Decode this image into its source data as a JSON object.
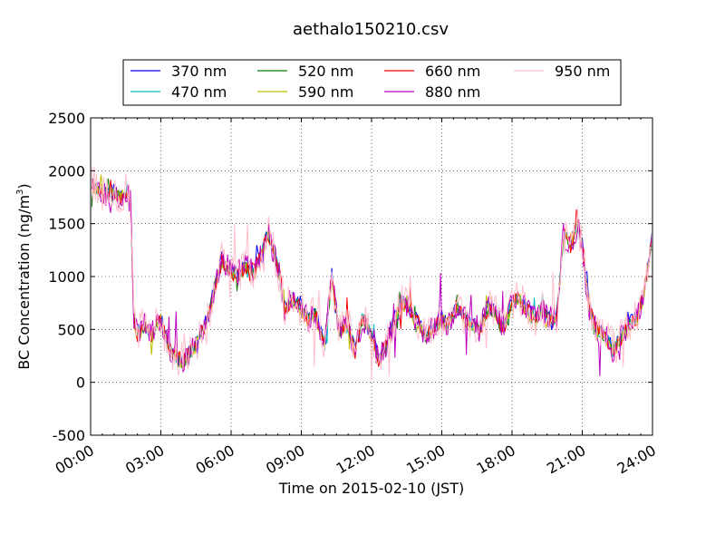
{
  "chart_data": {
    "type": "line",
    "title": "aethalo150210.csv",
    "xlabel": "Time on 2015-02-10 (JST)",
    "ylabel_main": "BC Concentration (ng/m",
    "ylabel_sup": "3",
    "ylabel_close": ")",
    "x_unit": "hours since 00:00",
    "xlim": [
      0,
      24
    ],
    "ylim": [
      -500,
      2500
    ],
    "xticks": [
      0,
      3,
      6,
      9,
      12,
      15,
      18,
      21,
      24
    ],
    "xtick_labels": [
      "00:00",
      "03:00",
      "06:00",
      "09:00",
      "12:00",
      "15:00",
      "18:00",
      "21:00",
      "24:00"
    ],
    "yticks": [
      -500,
      0,
      500,
      1000,
      1500,
      2000,
      2500
    ],
    "ytick_labels": [
      "-500",
      "0",
      "500",
      "1000",
      "1500",
      "2000",
      "2500"
    ],
    "grid": true,
    "legend_position": "top-center",
    "colors": {
      "370 nm": "#0000ff",
      "470 nm": "#00bfbf",
      "520 nm": "#008000",
      "590 nm": "#bfbf00",
      "660 nm": "#ff0000",
      "880 nm": "#bf00bf",
      "950 nm": "#ffc0cb"
    },
    "base_profile": {
      "x": [
        0,
        0.25,
        0.5,
        0.75,
        1.0,
        1.25,
        1.5,
        1.7,
        1.85,
        2.0,
        2.3,
        2.6,
        3.0,
        3.3,
        3.6,
        4.0,
        4.3,
        4.6,
        5.0,
        5.3,
        5.6,
        6.0,
        6.3,
        6.6,
        7.0,
        7.3,
        7.6,
        8.0,
        8.3,
        8.6,
        9.0,
        9.3,
        9.6,
        10.0,
        10.3,
        10.6,
        11.0,
        11.3,
        11.6,
        12.0,
        12.3,
        12.6,
        13.0,
        13.3,
        13.6,
        14.0,
        14.3,
        14.6,
        15.0,
        15.3,
        15.6,
        16.0,
        16.3,
        16.6,
        17.0,
        17.3,
        17.6,
        18.0,
        18.3,
        18.6,
        19.0,
        19.3,
        19.6,
        19.9,
        20.2,
        20.5,
        20.8,
        21.0,
        21.3,
        21.6,
        22.0,
        22.3,
        22.6,
        23.0,
        23.3,
        23.6,
        23.8,
        24.0
      ],
      "y": [
        1900,
        1850,
        1800,
        1780,
        1820,
        1750,
        1800,
        1700,
        600,
        450,
        550,
        450,
        600,
        350,
        250,
        200,
        300,
        400,
        600,
        900,
        1150,
        1050,
        1000,
        1100,
        1050,
        1250,
        1400,
        1100,
        700,
        800,
        700,
        600,
        650,
        350,
        1000,
        500,
        550,
        300,
        600,
        450,
        200,
        350,
        600,
        750,
        700,
        550,
        450,
        500,
        600,
        550,
        700,
        600,
        550,
        500,
        700,
        650,
        500,
        750,
        800,
        700,
        600,
        700,
        600,
        600,
        1400,
        1300,
        1500,
        1300,
        700,
        500,
        450,
        300,
        400,
        550,
        600,
        800,
        1100,
        1400
      ]
    },
    "series": [
      {
        "name": "370 nm",
        "offset": 20,
        "noise": 60,
        "seed": 11
      },
      {
        "name": "470 nm",
        "offset": 0,
        "noise": 60,
        "seed": 23
      },
      {
        "name": "520 nm",
        "offset": -10,
        "noise": 65,
        "seed": 37
      },
      {
        "name": "590 nm",
        "offset": -15,
        "noise": 70,
        "seed": 41
      },
      {
        "name": "660 nm",
        "offset": 0,
        "noise": 80,
        "seed": 53
      },
      {
        "name": "880 nm",
        "offset": 0,
        "noise": 120,
        "seed": 67
      },
      {
        "name": "950 nm",
        "offset": 0,
        "noise": 180,
        "seed": 79
      }
    ]
  }
}
